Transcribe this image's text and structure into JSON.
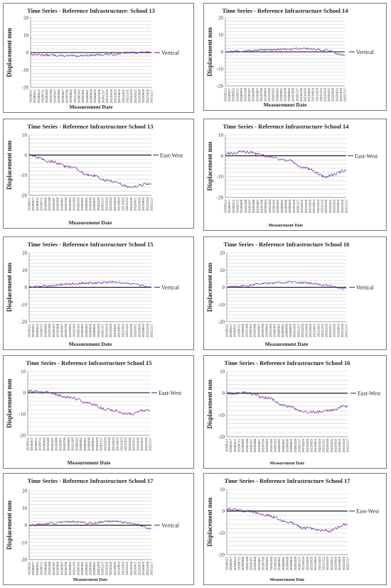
{
  "colors": {
    "series": "#7030a0",
    "grid": "#d0d0d0",
    "zero": "#000000",
    "border": "#777777"
  },
  "date_ticks": [
    "20180112",
    "20180317",
    "20180512",
    "20180711",
    "20180909",
    "20181108",
    "20190107",
    "20190308",
    "20190507",
    "20190706",
    "20190904",
    "20191103",
    "20200102",
    "20200302",
    "20200501",
    "20200630",
    "20200829",
    "20201028",
    "20201227",
    "20210225",
    "20210426",
    "20210625",
    "20210824",
    "20211023",
    "20211222",
    "20220220",
    "20220421",
    "20220620",
    "20220819",
    "20221018",
    "20221217"
  ],
  "chart_data": [
    {
      "type": "line",
      "title": "Time Series -  Reference Infrastructure: School 13",
      "xlabel": "Measurement Date",
      "ylabel": "Displacement  mm",
      "ylim": [
        -20,
        20
      ],
      "yticks": [
        20,
        10,
        0,
        -10,
        -20
      ],
      "series": [
        {
          "name": "Vertical",
          "trend": [
            -1,
            -1.5,
            -2,
            -1.5,
            -1,
            0,
            0
          ],
          "noise": 0.8
        }
      ]
    },
    {
      "type": "line",
      "title": "Time Series -  Reference Infrastructure School 14",
      "xlabel": "Measurement Date",
      "ylabel": "Displacement  mm",
      "ylim": [
        -20,
        20
      ],
      "yticks": [
        20,
        10,
        0,
        -10,
        -20
      ],
      "series": [
        {
          "name": "Vertical",
          "trend": [
            0,
            0.5,
            1,
            1.5,
            2,
            1,
            -2
          ],
          "noise": 0.8
        }
      ]
    },
    {
      "type": "line",
      "title": "Time Series    - Reference Infrastructure School  13",
      "xlabel": "Measurement Date",
      "ylabel": "Displacement  mm",
      "ylim": [
        -20,
        10
      ],
      "yticks": [
        10,
        0,
        -10,
        -20
      ],
      "series": [
        {
          "name": "East-West",
          "trend": [
            0,
            -3,
            -6,
            -10,
            -13,
            -16,
            -14
          ],
          "noise": 0.9
        }
      ]
    },
    {
      "type": "line",
      "title": "Time Series    - Reference Infrastructure School  14",
      "xlabel": "Measurement Date",
      "ylabel": "Displacement  mm",
      "ylim": [
        -20,
        10
      ],
      "yticks": [
        10,
        0,
        -10,
        -20
      ],
      "series": [
        {
          "name": "East-West",
          "trend": [
            1,
            2,
            0,
            -2,
            -6,
            -10,
            -7
          ],
          "noise": 0.9
        }
      ]
    },
    {
      "type": "line",
      "title": "Time Series  -  Reference Infrastructure School  15",
      "xlabel": "Measurement Date",
      "ylabel": "Displacement  mm",
      "ylim": [
        -20,
        20
      ],
      "yticks": [
        20,
        10,
        0,
        -10,
        -20
      ],
      "series": [
        {
          "name": "Vertical",
          "trend": [
            0,
            1,
            2,
            2.5,
            3,
            2,
            0
          ],
          "noise": 0.8
        }
      ]
    },
    {
      "type": "line",
      "title": "Time Series  -  Reference Infrastructure School  16",
      "xlabel": "Measurement Date",
      "ylabel": "Displacement  mm",
      "ylim": [
        -20,
        20
      ],
      "yticks": [
        20,
        10,
        0,
        -10,
        -20
      ],
      "series": [
        {
          "name": "Vertical",
          "trend": [
            0,
            1,
            2.5,
            3,
            2.5,
            1,
            -1
          ],
          "noise": 0.8
        }
      ]
    },
    {
      "type": "line",
      "title": "Time Series  -  Reference Infrastructure School  15",
      "xlabel": "Measurement Date",
      "ylabel": "Displacement  mm",
      "ylim": [
        -20,
        10
      ],
      "yticks": [
        10,
        0,
        -10,
        -20
      ],
      "series": [
        {
          "name": "East-West",
          "trend": [
            1,
            0,
            -2,
            -5,
            -8,
            -10,
            -8
          ],
          "noise": 0.9
        }
      ]
    },
    {
      "type": "line",
      "title": "Time Series  -  Reference Infrastructure School  16",
      "xlabel": "Measurement Date",
      "ylabel": "Displacement  mm",
      "ylim": [
        -20,
        10
      ],
      "yticks": [
        10,
        0,
        -10,
        -20
      ],
      "series": [
        {
          "name": "East-West",
          "trend": [
            0,
            0,
            -2,
            -6,
            -9,
            -8,
            -6
          ],
          "noise": 0.9
        }
      ]
    },
    {
      "type": "line",
      "title": "Time Series  -  Reference Infrastructure School  17",
      "xlabel": "Measurement Date",
      "ylabel": "Displacement  mm",
      "ylim": [
        -20,
        20
      ],
      "yticks": [
        20,
        10,
        0,
        -10,
        -20
      ],
      "series": [
        {
          "name": "Vertical",
          "trend": [
            0,
            1,
            2,
            1,
            2.5,
            1,
            -2
          ],
          "noise": 0.8
        }
      ]
    },
    {
      "type": "line",
      "title": "Time Series  -  Reference Infrastructure School  17",
      "xlabel": "Measurement Date",
      "ylabel": "Displacement  mm",
      "ylim": [
        -20,
        10
      ],
      "yticks": [
        10,
        0,
        -10,
        -20
      ],
      "series": [
        {
          "name": "East-West",
          "trend": [
            1,
            0,
            -2,
            -5,
            -8,
            -9,
            -6
          ],
          "noise": 0.9
        }
      ]
    }
  ]
}
